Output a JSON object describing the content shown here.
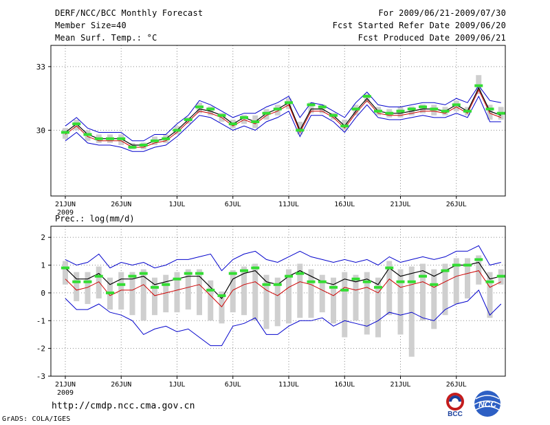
{
  "header": {
    "title": "DERF/NCC/BCC Monthly Forecast",
    "member_size": "Member Size=40",
    "variable": "Mean Surf. Temp.: °C",
    "period": "For 2009/06/21-2009/07/30",
    "started": "Fcst Started Refer Date 2009/06/20",
    "produced": "Fcst Produced Date 2009/06/21"
  },
  "footer": {
    "url": "http://cmdp.ncc.cma.gov.cn",
    "grads": "GrADS: COLA/IGES",
    "logo1_text": "BCC",
    "logo2_text": "NCC"
  },
  "colors": {
    "grid": "#888888",
    "box": "#cfcfcf",
    "median": "#33dd33",
    "mean": "#000000",
    "center": "#cc0000",
    "envelope": "#0000cc"
  },
  "chart_data": [
    {
      "type": "line",
      "title": "Mean Surf. Temp.: °C",
      "days": 40,
      "xlabel": "",
      "ylabel": "",
      "ylim": [
        26.9,
        34.0
      ],
      "yticks": [
        30,
        33
      ],
      "xticks": [
        {
          "day": 0,
          "label": "21JUN",
          "sub": "2009"
        },
        {
          "day": 5,
          "label": "26JUN"
        },
        {
          "day": 10,
          "label": "1JUL"
        },
        {
          "day": 15,
          "label": "6JUL"
        },
        {
          "day": 20,
          "label": "11JUL"
        },
        {
          "day": 25,
          "label": "16JUL"
        },
        {
          "day": 30,
          "label": "21JUL"
        },
        {
          "day": 35,
          "label": "26JUL"
        }
      ],
      "series": [
        {
          "name": "upper envelope",
          "values": [
            30.2,
            30.6,
            30.1,
            29.9,
            29.9,
            29.9,
            29.5,
            29.5,
            29.8,
            29.8,
            30.3,
            30.7,
            31.4,
            31.2,
            30.9,
            30.6,
            30.8,
            30.8,
            31.1,
            31.3,
            31.6,
            30.6,
            31.3,
            31.2,
            30.9,
            30.6,
            31.3,
            31.8,
            31.2,
            31.1,
            31.1,
            31.2,
            31.3,
            31.3,
            31.2,
            31.5,
            31.3,
            32.1,
            31.4,
            31.3
          ]
        },
        {
          "name": "ensemble mean",
          "values": [
            29.9,
            30.3,
            29.8,
            29.6,
            29.6,
            29.6,
            29.3,
            29.3,
            29.5,
            29.6,
            30.0,
            30.5,
            31.0,
            30.9,
            30.7,
            30.3,
            30.6,
            30.4,
            30.8,
            31.0,
            31.3,
            30.0,
            31.0,
            31.0,
            30.7,
            30.2,
            30.9,
            31.5,
            30.9,
            30.8,
            30.8,
            30.9,
            31.0,
            31.0,
            30.9,
            31.2,
            30.9,
            32.0,
            30.9,
            30.7
          ]
        },
        {
          "name": "center line",
          "values": [
            29.8,
            30.2,
            29.7,
            29.5,
            29.5,
            29.5,
            29.2,
            29.2,
            29.4,
            29.5,
            29.9,
            30.4,
            30.9,
            30.8,
            30.6,
            30.2,
            30.5,
            30.3,
            30.7,
            30.9,
            31.2,
            29.9,
            30.9,
            30.9,
            30.6,
            30.1,
            30.8,
            31.4,
            30.8,
            30.7,
            30.7,
            30.8,
            30.9,
            30.9,
            30.8,
            31.1,
            30.8,
            31.9,
            30.8,
            30.6
          ]
        },
        {
          "name": "lower envelope",
          "values": [
            29.5,
            29.9,
            29.4,
            29.3,
            29.3,
            29.2,
            29.0,
            29.0,
            29.2,
            29.3,
            29.7,
            30.2,
            30.7,
            30.6,
            30.3,
            30.0,
            30.2,
            30.0,
            30.4,
            30.6,
            30.9,
            29.7,
            30.7,
            30.7,
            30.4,
            29.9,
            30.6,
            31.2,
            30.6,
            30.5,
            30.5,
            30.6,
            30.7,
            30.6,
            30.6,
            30.8,
            30.6,
            31.6,
            30.4,
            30.4
          ]
        },
        {
          "name": "median",
          "values": [
            29.9,
            30.3,
            29.8,
            29.6,
            29.6,
            29.6,
            29.2,
            29.3,
            29.5,
            29.6,
            30.0,
            30.5,
            31.1,
            31.0,
            30.7,
            30.3,
            30.6,
            30.4,
            30.8,
            31.0,
            31.3,
            30.0,
            31.2,
            31.1,
            30.7,
            30.2,
            31.0,
            31.6,
            30.9,
            30.8,
            30.9,
            31.0,
            31.1,
            31.0,
            30.9,
            31.2,
            30.9,
            32.1,
            31.0,
            30.8
          ]
        }
      ],
      "boxes": {
        "low": [
          29.6,
          30.0,
          29.5,
          29.4,
          29.4,
          29.3,
          29.1,
          29.1,
          29.3,
          29.4,
          29.8,
          30.3,
          30.8,
          30.7,
          30.4,
          30.1,
          30.3,
          30.1,
          30.5,
          30.7,
          31.0,
          29.8,
          30.8,
          30.8,
          30.5,
          30.0,
          30.7,
          31.3,
          30.7,
          30.6,
          30.6,
          30.7,
          30.8,
          30.7,
          30.7,
          30.9,
          30.7,
          31.7,
          30.5,
          30.5
        ],
        "high": [
          30.1,
          30.5,
          30.0,
          29.8,
          29.8,
          29.8,
          29.4,
          29.4,
          29.7,
          29.8,
          30.2,
          30.6,
          31.3,
          31.1,
          30.8,
          30.5,
          30.7,
          30.7,
          31.0,
          31.2,
          31.5,
          30.4,
          31.2,
          31.1,
          30.8,
          30.5,
          31.2,
          31.7,
          31.1,
          31.0,
          31.1,
          31.1,
          31.2,
          31.2,
          31.1,
          31.4,
          31.1,
          32.6,
          31.2,
          31.1
        ]
      }
    },
    {
      "type": "line",
      "title": "Prec.: log(mm/d)",
      "days": 40,
      "xlabel": "",
      "ylabel": "log(mm/d)",
      "ylim": [
        -3,
        2.4
      ],
      "yticks": [
        -3,
        -2,
        -1,
        0,
        1,
        2
      ],
      "xticks": [
        {
          "day": 0,
          "label": "21JUN",
          "sub": "2009"
        },
        {
          "day": 5,
          "label": "26JUN"
        },
        {
          "day": 10,
          "label": "1JUL"
        },
        {
          "day": 15,
          "label": "6JUL"
        },
        {
          "day": 20,
          "label": "11JUL"
        },
        {
          "day": 25,
          "label": "16JUL"
        },
        {
          "day": 30,
          "label": "21JUL"
        },
        {
          "day": 35,
          "label": "26JUL"
        }
      ],
      "series": [
        {
          "name": "upper envelope",
          "values": [
            1.2,
            1.0,
            1.1,
            1.4,
            0.9,
            1.1,
            1.0,
            1.1,
            0.9,
            1.0,
            1.2,
            1.2,
            1.3,
            1.4,
            0.8,
            1.2,
            1.4,
            1.5,
            1.2,
            1.1,
            1.3,
            1.5,
            1.3,
            1.2,
            1.1,
            1.2,
            1.1,
            1.2,
            1.0,
            1.3,
            1.1,
            1.2,
            1.3,
            1.2,
            1.3,
            1.5,
            1.5,
            1.7,
            1.0,
            1.1
          ]
        },
        {
          "name": "ensemble mean",
          "values": [
            0.9,
            0.5,
            0.5,
            0.7,
            0.3,
            0.5,
            0.5,
            0.6,
            0.3,
            0.4,
            0.5,
            0.6,
            0.6,
            0.2,
            -0.2,
            0.5,
            0.7,
            0.8,
            0.4,
            0.3,
            0.6,
            0.8,
            0.6,
            0.4,
            0.3,
            0.5,
            0.4,
            0.5,
            0.3,
            0.9,
            0.6,
            0.7,
            0.8,
            0.6,
            0.8,
            1.0,
            1.0,
            1.1,
            0.5,
            0.6
          ]
        },
        {
          "name": "center line",
          "values": [
            0.5,
            0.1,
            0.2,
            0.4,
            -0.1,
            0.1,
            0.1,
            0.3,
            -0.1,
            0.0,
            0.1,
            0.2,
            0.3,
            -0.1,
            -0.5,
            0.1,
            0.3,
            0.4,
            0.1,
            -0.1,
            0.2,
            0.4,
            0.3,
            0.1,
            -0.1,
            0.2,
            0.1,
            0.2,
            0.0,
            0.5,
            0.2,
            0.3,
            0.4,
            0.2,
            0.4,
            0.6,
            0.7,
            0.8,
            0.2,
            0.4
          ]
        },
        {
          "name": "lower envelope",
          "values": [
            -0.2,
            -0.6,
            -0.6,
            -0.4,
            -0.7,
            -0.8,
            -1.0,
            -1.5,
            -1.3,
            -1.2,
            -1.4,
            -1.3,
            -1.6,
            -1.9,
            -1.9,
            -1.2,
            -1.1,
            -0.9,
            -1.5,
            -1.5,
            -1.2,
            -1.0,
            -1.0,
            -0.9,
            -1.2,
            -1.0,
            -1.1,
            -1.2,
            -1.0,
            -0.7,
            -0.8,
            -0.7,
            -0.9,
            -1.0,
            -0.6,
            -0.4,
            -0.3,
            0.1,
            -0.8,
            -0.4
          ]
        },
        {
          "name": "median",
          "values": [
            0.9,
            0.4,
            0.4,
            0.6,
            0.0,
            0.3,
            0.6,
            0.7,
            0.2,
            0.3,
            0.5,
            0.7,
            0.7,
            0.1,
            -0.1,
            0.7,
            0.8,
            0.9,
            0.3,
            0.3,
            0.6,
            0.7,
            0.4,
            0.4,
            0.2,
            0.1,
            0.5,
            0.4,
            0.2,
            0.9,
            0.4,
            0.4,
            0.6,
            0.3,
            0.8,
            1.0,
            1.0,
            1.2,
            0.4,
            0.6
          ]
        }
      ],
      "boxes": {
        "low": [
          0.3,
          -0.3,
          -0.4,
          -0.2,
          -0.6,
          -0.6,
          -0.8,
          -1.0,
          -0.8,
          -0.7,
          -0.7,
          -0.6,
          -0.8,
          -1.0,
          -1.1,
          -0.7,
          -0.8,
          -1.0,
          -1.3,
          -1.2,
          -1.1,
          -0.9,
          -0.9,
          -0.7,
          -1.1,
          -1.6,
          -1.0,
          -1.5,
          -1.6,
          -0.8,
          -1.5,
          -2.3,
          -1.0,
          -1.3,
          -0.8,
          -0.4,
          -0.2,
          0.3,
          -0.9,
          0.3
        ]
      }
    }
  ]
}
